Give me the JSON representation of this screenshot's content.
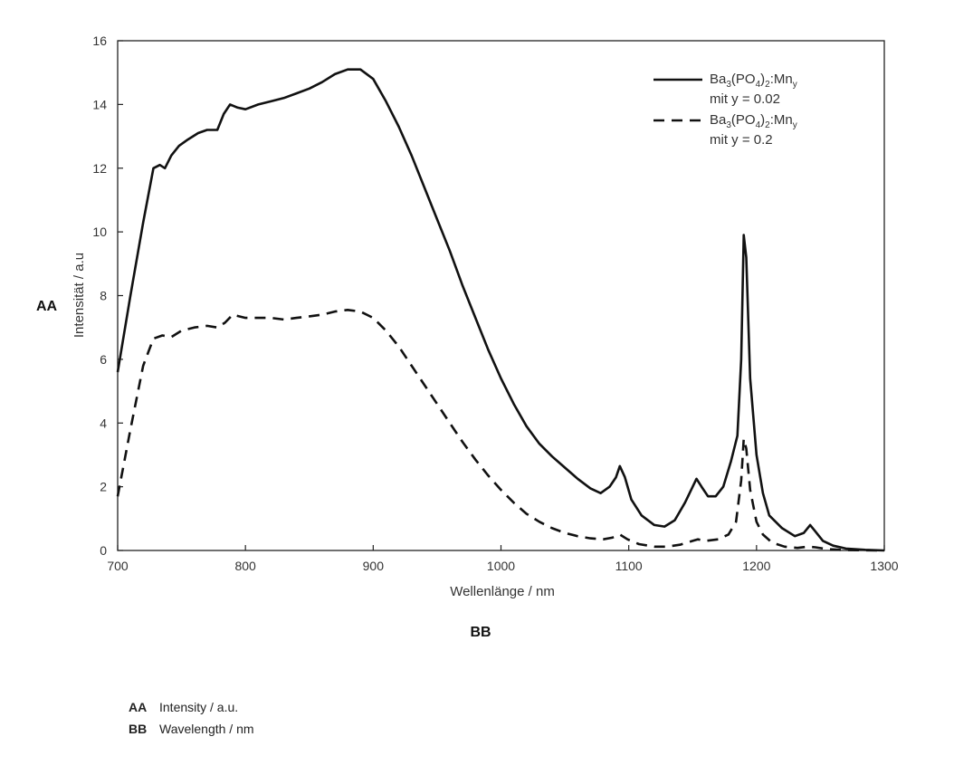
{
  "chart_data": {
    "type": "line",
    "xlabel": "Wellenlänge  / nm",
    "ylabel": "Intensität / a.u",
    "xlim": [
      700,
      1300
    ],
    "ylim": [
      0,
      16
    ],
    "xticks": [
      700,
      800,
      900,
      1000,
      1100,
      1200,
      1300
    ],
    "yticks": [
      0,
      2,
      4,
      6,
      8,
      10,
      12,
      14,
      16
    ],
    "grid": false,
    "legend_position": "top-right",
    "series": [
      {
        "name_main": "Ba",
        "name_sub1": "3",
        "name_mid": "(PO",
        "name_sub2": "4",
        "name_mid2": ")",
        "name_sub3": "2",
        "name_mid3": ":Mn",
        "name_sub4": "y",
        "name_line2": "mit y = 0.02",
        "style": "solid",
        "points": [
          [
            700,
            5.6
          ],
          [
            710,
            8.0
          ],
          [
            720,
            10.3
          ],
          [
            728,
            12.0
          ],
          [
            733,
            12.1
          ],
          [
            737,
            12.0
          ],
          [
            742,
            12.4
          ],
          [
            748,
            12.7
          ],
          [
            755,
            12.9
          ],
          [
            763,
            13.1
          ],
          [
            770,
            13.2
          ],
          [
            778,
            13.2
          ],
          [
            783,
            13.7
          ],
          [
            788,
            14.0
          ],
          [
            794,
            13.9
          ],
          [
            800,
            13.85
          ],
          [
            810,
            14.0
          ],
          [
            820,
            14.1
          ],
          [
            830,
            14.2
          ],
          [
            840,
            14.35
          ],
          [
            850,
            14.5
          ],
          [
            860,
            14.7
          ],
          [
            870,
            14.95
          ],
          [
            880,
            15.1
          ],
          [
            890,
            15.1
          ],
          [
            900,
            14.8
          ],
          [
            910,
            14.1
          ],
          [
            920,
            13.3
          ],
          [
            930,
            12.4
          ],
          [
            940,
            11.4
          ],
          [
            950,
            10.4
          ],
          [
            960,
            9.4
          ],
          [
            970,
            8.3
          ],
          [
            980,
            7.3
          ],
          [
            990,
            6.3
          ],
          [
            1000,
            5.4
          ],
          [
            1010,
            4.6
          ],
          [
            1020,
            3.9
          ],
          [
            1030,
            3.35
          ],
          [
            1040,
            2.95
          ],
          [
            1050,
            2.6
          ],
          [
            1060,
            2.25
          ],
          [
            1070,
            1.95
          ],
          [
            1078,
            1.8
          ],
          [
            1085,
            2.0
          ],
          [
            1090,
            2.3
          ],
          [
            1093,
            2.65
          ],
          [
            1097,
            2.3
          ],
          [
            1102,
            1.6
          ],
          [
            1110,
            1.1
          ],
          [
            1120,
            0.8
          ],
          [
            1128,
            0.75
          ],
          [
            1136,
            0.95
          ],
          [
            1144,
            1.5
          ],
          [
            1150,
            2.0
          ],
          [
            1153,
            2.25
          ],
          [
            1157,
            2.0
          ],
          [
            1162,
            1.7
          ],
          [
            1168,
            1.7
          ],
          [
            1174,
            2.0
          ],
          [
            1180,
            2.8
          ],
          [
            1185,
            3.6
          ],
          [
            1188,
            6.0
          ],
          [
            1190,
            9.9
          ],
          [
            1192,
            9.2
          ],
          [
            1195,
            5.4
          ],
          [
            1200,
            3.0
          ],
          [
            1205,
            1.8
          ],
          [
            1210,
            1.1
          ],
          [
            1220,
            0.7
          ],
          [
            1230,
            0.45
          ],
          [
            1237,
            0.55
          ],
          [
            1242,
            0.8
          ],
          [
            1246,
            0.6
          ],
          [
            1252,
            0.3
          ],
          [
            1260,
            0.15
          ],
          [
            1270,
            0.06
          ],
          [
            1285,
            0.02
          ],
          [
            1300,
            0.0
          ]
        ]
      },
      {
        "name_main": "Ba",
        "name_sub1": "3",
        "name_mid": "(PO",
        "name_sub2": "4",
        "name_mid2": ")",
        "name_sub3": "2",
        "name_mid3": ":Mn",
        "name_sub4": "y",
        "name_line2": "mit y = 0.2",
        "style": "dashed",
        "points": [
          [
            700,
            1.7
          ],
          [
            710,
            3.8
          ],
          [
            720,
            5.8
          ],
          [
            728,
            6.65
          ],
          [
            735,
            6.75
          ],
          [
            742,
            6.7
          ],
          [
            750,
            6.9
          ],
          [
            760,
            7.0
          ],
          [
            770,
            7.05
          ],
          [
            778,
            7.0
          ],
          [
            784,
            7.15
          ],
          [
            790,
            7.4
          ],
          [
            795,
            7.35
          ],
          [
            800,
            7.3
          ],
          [
            810,
            7.3
          ],
          [
            820,
            7.3
          ],
          [
            830,
            7.25
          ],
          [
            840,
            7.3
          ],
          [
            850,
            7.35
          ],
          [
            860,
            7.4
          ],
          [
            870,
            7.5
          ],
          [
            880,
            7.55
          ],
          [
            890,
            7.5
          ],
          [
            900,
            7.3
          ],
          [
            910,
            6.9
          ],
          [
            920,
            6.4
          ],
          [
            930,
            5.8
          ],
          [
            940,
            5.2
          ],
          [
            950,
            4.6
          ],
          [
            960,
            4.0
          ],
          [
            970,
            3.4
          ],
          [
            980,
            2.85
          ],
          [
            990,
            2.35
          ],
          [
            1000,
            1.9
          ],
          [
            1010,
            1.5
          ],
          [
            1020,
            1.15
          ],
          [
            1030,
            0.9
          ],
          [
            1040,
            0.7
          ],
          [
            1050,
            0.55
          ],
          [
            1060,
            0.45
          ],
          [
            1070,
            0.38
          ],
          [
            1080,
            0.35
          ],
          [
            1087,
            0.4
          ],
          [
            1093,
            0.5
          ],
          [
            1099,
            0.35
          ],
          [
            1108,
            0.2
          ],
          [
            1120,
            0.12
          ],
          [
            1130,
            0.12
          ],
          [
            1140,
            0.18
          ],
          [
            1150,
            0.3
          ],
          [
            1154,
            0.35
          ],
          [
            1160,
            0.3
          ],
          [
            1170,
            0.35
          ],
          [
            1178,
            0.5
          ],
          [
            1184,
            0.9
          ],
          [
            1188,
            2.2
          ],
          [
            1190,
            3.5
          ],
          [
            1192,
            3.2
          ],
          [
            1195,
            1.9
          ],
          [
            1200,
            0.9
          ],
          [
            1205,
            0.5
          ],
          [
            1212,
            0.25
          ],
          [
            1222,
            0.12
          ],
          [
            1232,
            0.08
          ],
          [
            1240,
            0.12
          ],
          [
            1246,
            0.1
          ],
          [
            1256,
            0.04
          ],
          [
            1270,
            0.01
          ],
          [
            1300,
            0.0
          ]
        ]
      }
    ]
  },
  "axis_tags": {
    "y": "AA",
    "x": "BB"
  },
  "footnotes": [
    {
      "tag": "AA",
      "text": "Intensity / a.u."
    },
    {
      "tag": "BB",
      "text": "Wavelength / nm"
    }
  ]
}
